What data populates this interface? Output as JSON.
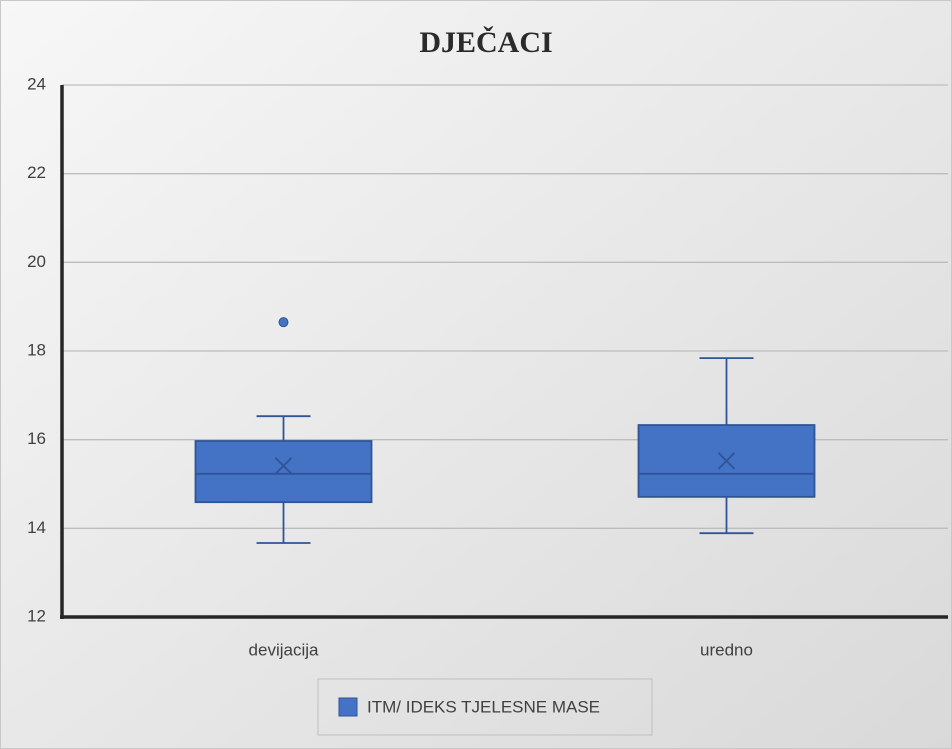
{
  "chart_data": {
    "type": "box",
    "title": "DJEČACI",
    "categories": [
      "devijacija",
      "uredno"
    ],
    "series": [
      {
        "name": "ITM/ IDEKS TJELESNE MASE",
        "color": "#4472c4",
        "boxes": [
          {
            "min": 13.67,
            "q1": 14.59,
            "median": 15.23,
            "q3": 15.97,
            "max": 16.53,
            "mean": 15.41,
            "outliers": [
              18.65
            ]
          },
          {
            "min": 13.89,
            "q1": 14.71,
            "median": 15.23,
            "q3": 16.33,
            "max": 17.84,
            "mean": 15.52,
            "outliers": []
          }
        ]
      }
    ],
    "ylim": [
      12,
      24
    ],
    "yticks": [
      12,
      14,
      16,
      18,
      20,
      22,
      24
    ],
    "grid": true,
    "legend": "bottom"
  }
}
